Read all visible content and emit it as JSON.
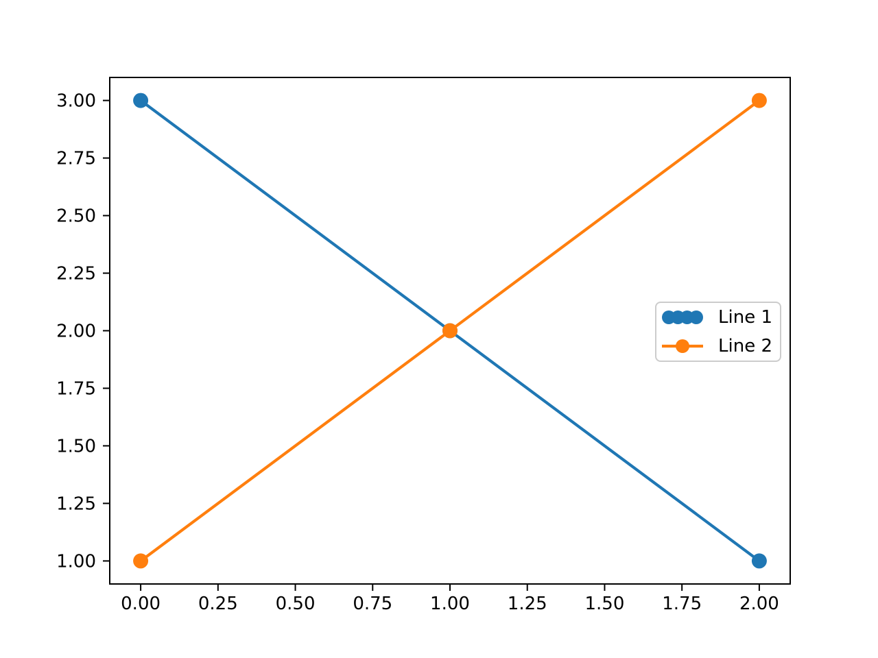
{
  "chart_data": {
    "type": "line",
    "title": "",
    "xlabel": "",
    "ylabel": "",
    "x": [
      0,
      1,
      2
    ],
    "series": [
      {
        "name": "Line 1",
        "values": [
          3,
          2,
          1
        ],
        "color": "#1f77b4",
        "marker": "circle",
        "legend_marker_count": 4,
        "legend_show_line": false
      },
      {
        "name": "Line 2",
        "values": [
          1,
          2,
          3
        ],
        "color": "#ff7f0e",
        "marker": "circle",
        "legend_marker_count": 1,
        "legend_show_line": true
      }
    ],
    "xlim": [
      -0.1,
      2.1
    ],
    "ylim": [
      0.9,
      3.1
    ],
    "xticks": {
      "values": [
        0,
        0.25,
        0.5,
        0.75,
        1.0,
        1.25,
        1.5,
        1.75,
        2.0
      ],
      "labels": [
        "0.00",
        "0.25",
        "0.50",
        "0.75",
        "1.00",
        "1.25",
        "1.50",
        "1.75",
        "2.00"
      ]
    },
    "yticks": {
      "values": [
        1.0,
        1.25,
        1.5,
        1.75,
        2.0,
        2.25,
        2.5,
        2.75,
        3.0
      ],
      "labels": [
        "1.00",
        "1.25",
        "1.50",
        "1.75",
        "2.00",
        "2.25",
        "2.50",
        "2.75",
        "3.00"
      ]
    },
    "grid": false,
    "legend_position": "center right",
    "background_color": "#ffffff",
    "axis_color": "#000000",
    "legend_border_color": "#cccccc"
  }
}
